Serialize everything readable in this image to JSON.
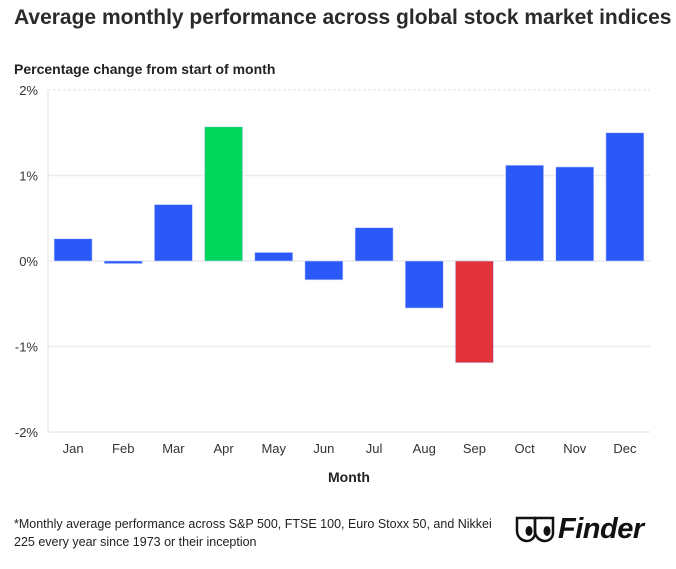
{
  "chart_data": {
    "type": "bar",
    "title": "Average monthly performance across global stock market indices",
    "ylabel": "Percentage change from start of month",
    "xlabel": "Month",
    "categories": [
      "Jan",
      "Feb",
      "Mar",
      "Apr",
      "May",
      "Jun",
      "Jul",
      "Aug",
      "Sep",
      "Oct",
      "Nov",
      "Dec"
    ],
    "values": [
      0.26,
      -0.03,
      0.66,
      1.57,
      0.1,
      -0.22,
      0.39,
      -0.55,
      -1.19,
      1.12,
      1.1,
      1.5
    ],
    "ylim": [
      -2,
      2
    ],
    "yticks": [
      2,
      1,
      0,
      -1,
      -2
    ],
    "ytick_labels": [
      "2%",
      "1%",
      "0%",
      "-1%",
      "-2%"
    ],
    "grid": true,
    "colors": {
      "default": "#2b59f8",
      "max": "#00d65c",
      "min": "#e3333a"
    }
  },
  "footnote": "*Monthly average performance across S&P 500, FTSE 100, Euro Stoxx 50, and Nikkei 225 every year since 1973 or their inception",
  "logo": {
    "text": "Finder",
    "icon": "finder-eyes-icon"
  }
}
